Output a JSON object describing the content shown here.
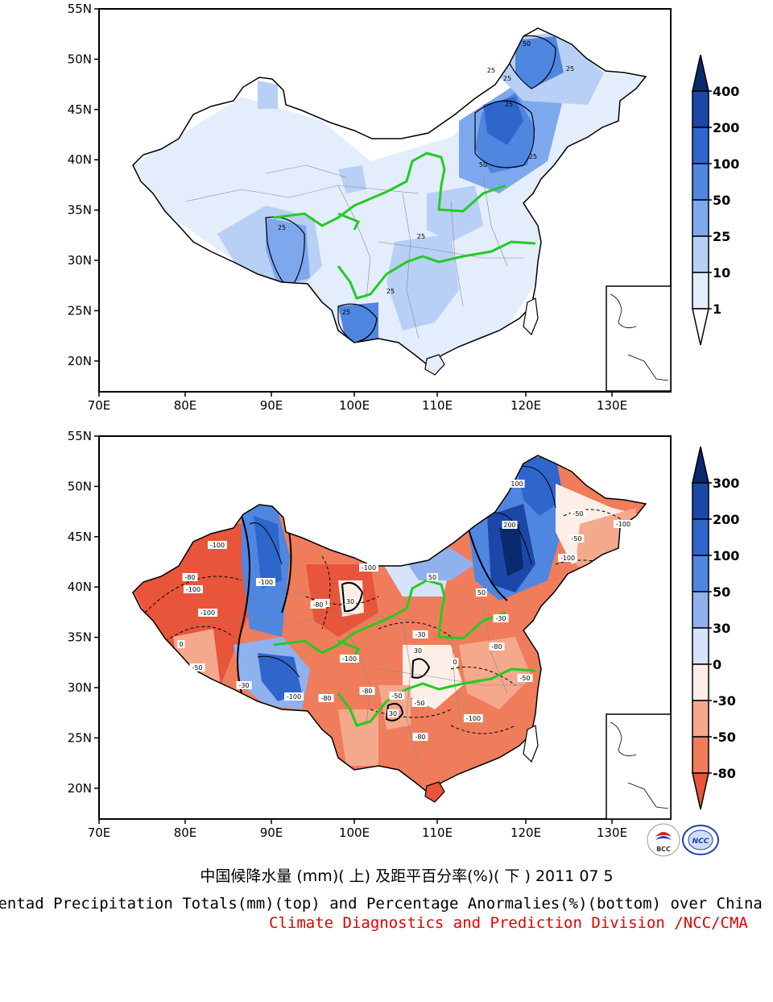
{
  "top_panel": {
    "lon_labels": [
      "70E",
      "80E",
      "90E",
      "100E",
      "110E",
      "120E",
      "130E"
    ],
    "lat_labels": [
      "55N",
      "50N",
      "45N",
      "40N",
      "35N",
      "30N",
      "25N",
      "20N"
    ],
    "colorbar": {
      "labels": [
        "400",
        "200",
        "100",
        "50",
        "25",
        "10",
        "1"
      ],
      "colors": [
        "#0a2a6e",
        "#1b48a8",
        "#2f66cc",
        "#4f86e0",
        "#7ea8ee",
        "#b8cff6",
        "#e4edfc",
        "#ffffff"
      ]
    },
    "contour_labels": [
      "50",
      "25",
      "25",
      "50",
      "25",
      "25",
      "25",
      "25",
      "25",
      "25",
      "25"
    ]
  },
  "bottom_panel": {
    "lon_labels": [
      "70E",
      "80E",
      "90E",
      "100E",
      "110E",
      "120E",
      "130E"
    ],
    "lat_labels": [
      "55N",
      "50N",
      "45N",
      "40N",
      "35N",
      "30N",
      "25N",
      "20N"
    ],
    "colorbar": {
      "labels": [
        "300",
        "200",
        "100",
        "50",
        "30",
        "0",
        "-30",
        "-50",
        "-80"
      ],
      "colors": [
        "#0a2a6e",
        "#1b48a8",
        "#2f66cc",
        "#4f86e0",
        "#8fb2ee",
        "#d6e3fa",
        "#fdeee8",
        "#f4a88c",
        "#ef7d5c",
        "#e8553a"
      ]
    },
    "contour_labels": [
      "-100",
      "-100",
      "-100",
      "-80",
      "-50",
      "-100",
      "-80",
      "30",
      "-100",
      "-100",
      "-80",
      "-50",
      "30",
      "-80",
      "-50",
      "-50",
      "50",
      "-100",
      "-80",
      "200",
      "100",
      "50",
      "-100",
      "-100",
      "-30",
      "-30",
      "30",
      "0",
      "-50",
      "-80",
      "-100",
      "-80",
      "0",
      "-30",
      "-50"
    ]
  },
  "titles": {
    "chinese": "中国候降水量 (mm)( 上) 及距平百分率(%)( 下 ) 2011 07 5",
    "english": "Pentad Precipitation Totals(mm)(top) and Percentage Anormalies(%)(bottom) over China",
    "credit": "Climate Diagnostics and Prediction Division /NCC/CMA"
  },
  "logos": [
    "BCC",
    "NCC"
  ]
}
